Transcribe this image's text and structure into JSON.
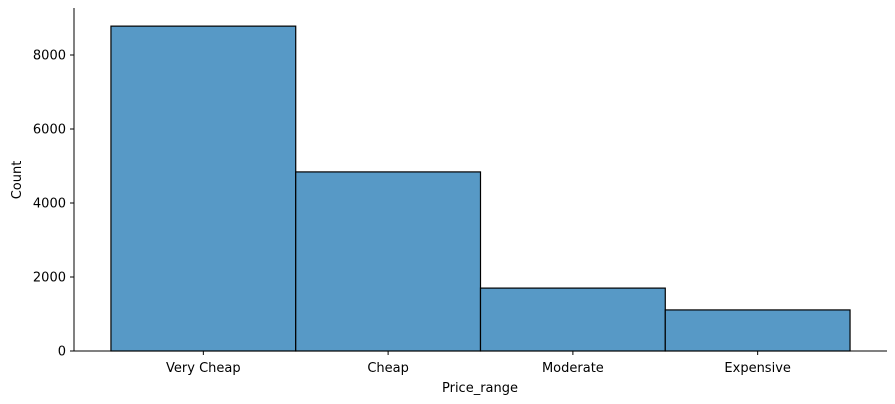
{
  "chart_data": {
    "type": "bar",
    "x_label": "Price_range",
    "y_label": "Count",
    "categories": [
      "Very Cheap",
      "Cheap",
      "Moderate",
      "Expensive"
    ],
    "values": [
      8780,
      4840,
      1700,
      1110
    ],
    "color": "#5799c6",
    "edge_color": "#000000",
    "ylim": [
      0,
      9270
    ],
    "yticks": [
      0,
      2000,
      4000,
      6000,
      8000
    ],
    "grid": false
  }
}
